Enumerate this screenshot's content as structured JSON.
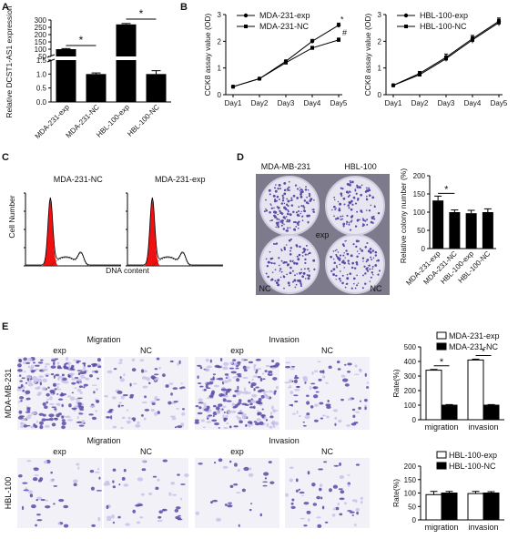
{
  "panels": {
    "A": "A",
    "B": "B",
    "C": "C",
    "D": "D",
    "E": "E"
  },
  "colors": {
    "black": "#000000",
    "white": "#ffffff",
    "red": "#ee1111",
    "stain": "#5b4aa8",
    "stain_light": "#c9c2ea"
  },
  "chart_data": [
    {
      "id": "A",
      "type": "bar",
      "ylabel": "Relative DCST1-AS1 expression",
      "categories": [
        "MDA-231-exp",
        "MDA-231-NC",
        "HBL-100-exp",
        "HBL-100-NC"
      ],
      "values": [
        100,
        1.0,
        270,
        1.0
      ],
      "errors": [
        4,
        0.04,
        6,
        0.12
      ],
      "axis_break": true,
      "lower_range": [
        0,
        1.5
      ],
      "lower_ticks": [
        "0.0",
        "0.5",
        "1.0",
        "1.5"
      ],
      "upper_range": [
        50,
        300
      ],
      "upper_ticks": [
        "50",
        "100",
        "150",
        "200",
        "250",
        "300"
      ],
      "annotations": [
        "*",
        "*"
      ]
    },
    {
      "id": "B1",
      "type": "line",
      "ylabel": "CCK8 assay value (OD)",
      "categories": [
        "Day1",
        "Day2",
        "Day3",
        "Day4",
        "Day5"
      ],
      "ylim": [
        0,
        3
      ],
      "yticks": [
        "0",
        "1",
        "2",
        "3"
      ],
      "legend": "top-left",
      "series": [
        {
          "name": "MDA-231-exp",
          "values": [
            0.3,
            0.6,
            1.25,
            2.0,
            2.6
          ],
          "errors": [
            0.02,
            0.03,
            0.05,
            0.07,
            0.08
          ]
        },
        {
          "name": "MDA-231-NC",
          "values": [
            0.3,
            0.6,
            1.2,
            1.75,
            2.05
          ],
          "errors": [
            0.02,
            0.03,
            0.05,
            0.06,
            0.07
          ]
        }
      ],
      "annotations": [
        "*",
        "#"
      ]
    },
    {
      "id": "B2",
      "type": "line",
      "ylabel": "CCK8 assay value (OD)",
      "categories": [
        "Day1",
        "Day2",
        "Day3",
        "Day4",
        "Day5"
      ],
      "ylim": [
        0,
        3
      ],
      "yticks": [
        "0",
        "1",
        "2",
        "3"
      ],
      "legend": "top-left",
      "series": [
        {
          "name": "HBL-100-exp",
          "values": [
            0.35,
            0.8,
            1.4,
            2.1,
            2.75
          ],
          "errors": [
            0.03,
            0.07,
            0.12,
            0.12,
            0.12
          ]
        },
        {
          "name": "HBL-100-NC",
          "values": [
            0.35,
            0.75,
            1.35,
            2.05,
            2.7
          ],
          "errors": [
            0.03,
            0.06,
            0.1,
            0.12,
            0.12
          ]
        }
      ]
    },
    {
      "id": "C",
      "type": "area",
      "xlabel": "DNA content",
      "ylabel": "Cell Number",
      "plots": [
        {
          "title": "MDA-231-NC"
        },
        {
          "title": "MDA-231-exp"
        }
      ]
    },
    {
      "id": "D",
      "type": "bar",
      "ylabel": "Relative colony number (%)",
      "categories": [
        "MDA-231-exp",
        "MDA-231-NC",
        "HBL-100-exp",
        "HBL-100-NC"
      ],
      "values": [
        132,
        100,
        97,
        100
      ],
      "errors": [
        12,
        6,
        8,
        9
      ],
      "ylim": [
        0,
        200
      ],
      "yticks": [
        "0",
        "50",
        "100",
        "150",
        "200"
      ],
      "annotations": [
        "*"
      ],
      "photo_labels": {
        "col1": "MDA-MB-231",
        "col2": "HBL-100",
        "exp": "exp",
        "nc1": "NC",
        "nc2": "NC"
      }
    },
    {
      "id": "E1",
      "type": "bar",
      "ylabel": "Rate(%)",
      "categories": [
        "migration",
        "invasion"
      ],
      "series": [
        {
          "name": "MDA-231-exp",
          "values": [
            340,
            410
          ],
          "errors": [
            5,
            6
          ]
        },
        {
          "name": "MDA-231-NC",
          "values": [
            100,
            100
          ],
          "errors": [
            4,
            4
          ]
        }
      ],
      "ylim": [
        0,
        500
      ],
      "yticks": [
        "0",
        "100",
        "200",
        "300",
        "400",
        "500"
      ],
      "legend": "top-right",
      "annotations": [
        "*",
        "*"
      ]
    },
    {
      "id": "E2",
      "type": "bar",
      "ylabel": "Rate(%)",
      "categories": [
        "migration",
        "invasion"
      ],
      "series": [
        {
          "name": "HBL-100-exp",
          "values": [
            94,
            98
          ],
          "errors": [
            12,
            8
          ]
        },
        {
          "name": "HBL-100-NC",
          "values": [
            100,
            100
          ],
          "errors": [
            6,
            5
          ]
        }
      ],
      "ylim": [
        0,
        200
      ],
      "yticks": [
        "0",
        "50",
        "100",
        "150",
        "200"
      ],
      "legend": "top-right"
    }
  ],
  "micro": {
    "row1_label": "MDA-MB-231",
    "row2_label": "HBL-100",
    "migration": "Migration",
    "invasion": "Invasion",
    "exp": "exp",
    "nc": "NC"
  }
}
